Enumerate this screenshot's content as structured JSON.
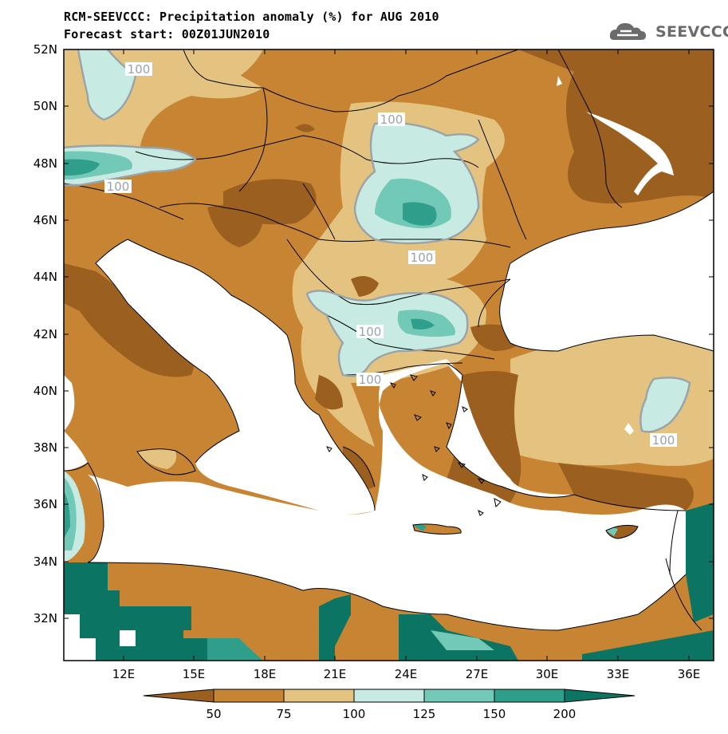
{
  "header": {
    "title_line1": "RCM-SEEVCCC: Precipitation anomaly (%) for AUG 2010",
    "title_line2": "Forecast start: 00Z01JUN2010",
    "logo_text": "SEEVCCC"
  },
  "map": {
    "lat_labels": [
      "52N",
      "50N",
      "48N",
      "46N",
      "44N",
      "42N",
      "40N",
      "38N",
      "36N",
      "34N",
      "32N"
    ],
    "lon_labels": [
      "12E",
      "15E",
      "18E",
      "21E",
      "24E",
      "27E",
      "30E",
      "33E",
      "36E"
    ],
    "contour_labels": [
      "100",
      "100",
      "100",
      "100",
      "100",
      "100",
      "100",
      "100"
    ]
  },
  "colorbar": {
    "tick_labels": [
      "50",
      "75",
      "100",
      "125",
      "150",
      "200"
    ],
    "colors": [
      "#9b5f1f",
      "#c78534",
      "#e3c37f",
      "#c7ebe2",
      "#73c9b7",
      "#2f9f8c",
      "#0c7462"
    ]
  },
  "colors": {
    "dark_brown": "#9b5f1f",
    "brown": "#c78534",
    "tan": "#e3c37f",
    "light_teal": "#c7ebe2",
    "teal": "#73c9b7",
    "dark_teal": "#0c7462",
    "sea": "#ffffff"
  }
}
